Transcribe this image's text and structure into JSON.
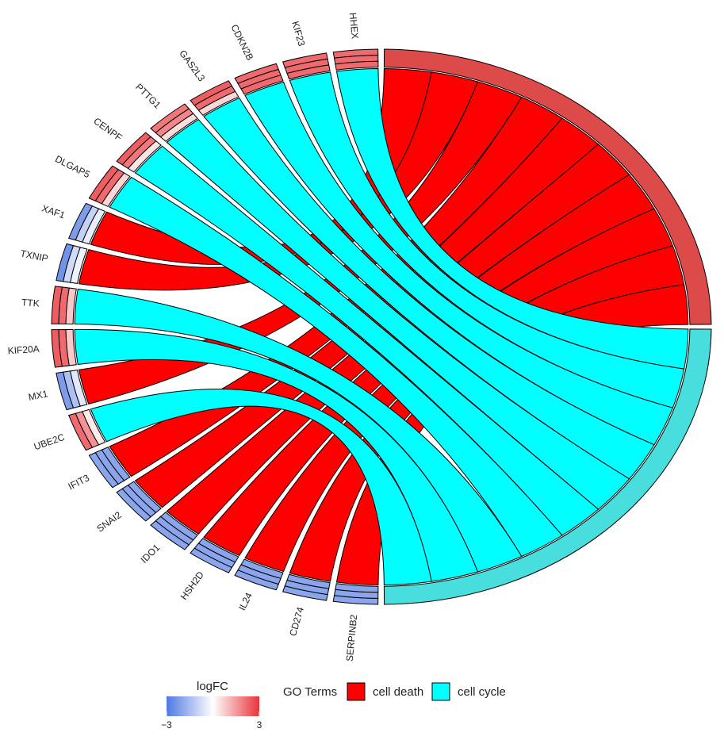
{
  "chart_data": {
    "type": "chord",
    "categories": [
      "HHEX",
      "KIF23",
      "CDKN2B",
      "GAS2L3",
      "PTTG1",
      "CENPF",
      "DLGAP5",
      "XAF1",
      "TXNIP",
      "TTK",
      "KIF20A",
      "MX1",
      "UBE2C",
      "IFIT3",
      "SNAI2",
      "IDO1",
      "HSH2D",
      "IL24",
      "CD274",
      "SERPINB2"
    ],
    "logfc": [
      [
        2.2,
        2.2,
        2.2
      ],
      [
        2.2,
        2.2,
        2.2
      ],
      [
        2.2,
        2.2,
        2.2
      ],
      [
        2.4,
        2.2,
        0.6
      ],
      [
        2,
        1.8,
        0.5
      ],
      [
        2.4,
        2,
        0.4
      ],
      [
        2.4,
        2.2,
        0.6
      ],
      [
        -2.2,
        -1,
        -0.4
      ],
      [
        -2.4,
        -0.8,
        -0.3
      ],
      [
        2.4,
        2.2,
        0.8
      ],
      [
        2.4,
        2.2,
        0.8
      ],
      [
        -2.2,
        -1.4,
        -0.5
      ],
      [
        2.2,
        1.6,
        0.3
      ],
      [
        -2,
        -2,
        -2
      ],
      [
        -2,
        -2,
        -2
      ],
      [
        -2,
        -2,
        -2
      ],
      [
        -2,
        -2,
        -2
      ],
      [
        -2,
        -2,
        -2
      ],
      [
        -2,
        -2,
        -2
      ],
      [
        -2,
        -2,
        -2
      ]
    ],
    "legend_title": "GO Terms",
    "series": [
      {
        "name": "cell death",
        "color": "#ff0000",
        "arc_color": "#dc4a4a",
        "values": [
          0,
          0,
          0,
          0,
          0,
          0,
          0,
          1,
          1,
          0,
          0,
          1,
          0,
          1,
          1,
          1,
          1,
          1,
          1,
          1
        ]
      },
      {
        "name": "cell cycle",
        "color": "#00ffff",
        "arc_color": "#48dede",
        "values": [
          1,
          1,
          1,
          1,
          1,
          1,
          1,
          0,
          0,
          1,
          1,
          0,
          1,
          0,
          0,
          0,
          0,
          0,
          0,
          0
        ]
      }
    ],
    "colorbar": {
      "title": "logFC",
      "lim": [
        -3,
        3
      ],
      "ticks": [
        {
          "value": -3,
          "label": "−3"
        },
        3
      ],
      "colors": [
        "#4f78e3",
        "#ffffff",
        "#e8343a"
      ]
    }
  }
}
